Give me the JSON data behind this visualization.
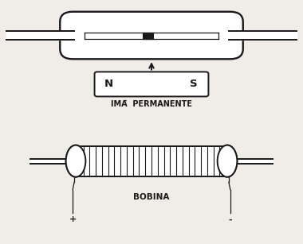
{
  "bg_color": "#f0ede8",
  "line_color": "#1a1a1a",
  "magnet_label": "IMĀ  PERMANENTE",
  "coil_label": "BOBINA",
  "N_label": "N",
  "S_label": "S",
  "plus_label": "+",
  "minus_label": "-",
  "lw_main": 1.4,
  "lw_thin": 0.9
}
